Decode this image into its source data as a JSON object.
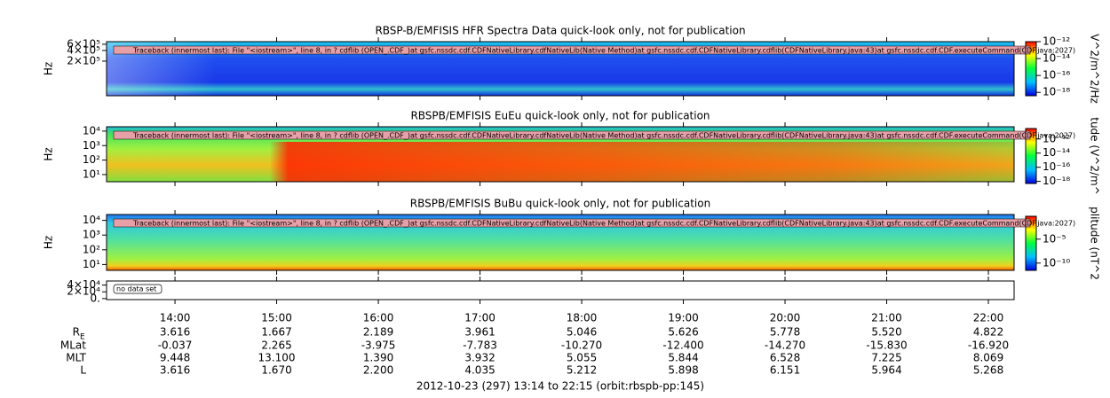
{
  "chart_data": [
    {
      "type": "heatmap",
      "title": "RBSP-B/EMFISIS  HFR Spectra Data quick-look only, not for publication",
      "ylabel": "Hz",
      "ylog": true,
      "ylim": [
        21000,
        710000
      ],
      "yticks": [
        {
          "value": 200000,
          "label": "2×10⁵"
        },
        {
          "value": 400000,
          "label": "4×10⁵"
        },
        {
          "value": 600000,
          "label": "6×10⁵"
        }
      ],
      "message": "Traceback (innermost last):  File \"<iostream>\", line 8, in ?  cdflib (OPEN_.CDF_)at gsfc.nssdc.cdf.CDFNativeLibrary.cdfNativeLib(Native Method)at gsfc.nssdc.cdf.CDFNativeLibrary.cdflib(CDFNativeLibrary.java:43)at gsfc.nssdc.cdf.CDF.executeCommand(CDF.java:2027)",
      "colorbar": {
        "label": "V^2/m^2/Hz",
        "log": true,
        "lim": [
          4e-19,
          1e-12
        ],
        "ticks": [
          {
            "value": 1e-12,
            "label": "10⁻¹²"
          },
          {
            "value": 1e-14,
            "label": "10⁻¹⁴"
          },
          {
            "value": 1e-16,
            "label": "10⁻¹⁶"
          },
          {
            "value": 1e-18,
            "label": "10⁻¹⁸"
          }
        ]
      }
    },
    {
      "type": "heatmap",
      "title": "RBSPB/EMFISIS  EuEu quick-look only, not for publication",
      "ylabel": "Hz",
      "ylog": true,
      "ylim": [
        3.2,
        20000
      ],
      "yticks": [
        {
          "value": 10,
          "label": "10¹"
        },
        {
          "value": 100,
          "label": "10²"
        },
        {
          "value": 1000,
          "label": "10³"
        },
        {
          "value": 10000,
          "label": "10⁴"
        }
      ],
      "message": "Traceback (innermost last):  File \"<iostream>\", line 8, in ?  cdflib (OPEN_.CDF_)at gsfc.nssdc.cdf.CDFNativeLibrary.cdfNativeLib(Native Method)at gsfc.nssdc.cdf.CDFNativeLibrary.cdflib(CDFNativeLibrary.java:43)at gsfc.nssdc.cdf.CDF.executeCommand(CDF.java:2027)",
      "colorbar": {
        "label": "tude (V^2/m^",
        "log": true,
        "lim": [
          5e-19,
          3e-11
        ],
        "ticks": [
          {
            "value": 1e-12,
            "label": "10⁻¹²"
          },
          {
            "value": 1e-14,
            "label": "10⁻¹⁴"
          },
          {
            "value": 1e-16,
            "label": "10⁻¹⁶"
          },
          {
            "value": 1e-18,
            "label": "10⁻¹⁸"
          }
        ]
      }
    },
    {
      "type": "heatmap",
      "title": "RBSPB/EMFISIS  BuBu quick-look only, not for publication",
      "ylabel": "Hz",
      "ylog": true,
      "ylim": [
        4,
        25000
      ],
      "yticks": [
        {
          "value": 10,
          "label": "10¹"
        },
        {
          "value": 100,
          "label": "10²"
        },
        {
          "value": 1000,
          "label": "10³"
        },
        {
          "value": 10000,
          "label": "10⁴"
        }
      ],
      "message": "Traceback (innermost last):  File \"<iostream>\", line 8, in ?  cdflib (OPEN_.CDF_)at gsfc.nssdc.cdf.CDFNativeLibrary.cdfNativeLib(Native Method)at gsfc.nssdc.cdf.CDFNativeLibrary.cdflib(CDFNativeLibrary.java:43)at gsfc.nssdc.cdf.CDF.executeCommand(CDF.java:2027)",
      "colorbar": {
        "label": "plitude (nT^2",
        "log": true,
        "lim": [
          3e-12,
          0.6
        ],
        "ticks": [
          {
            "value": 1e-05,
            "label": "10⁻⁵"
          },
          {
            "value": 1e-10,
            "label": "10⁻¹⁰"
          }
        ]
      }
    },
    {
      "type": "empty",
      "ylog": false,
      "ylim": [
        -3000,
        52000
      ],
      "yticks": [
        {
          "value": 0,
          "label": "0."
        },
        {
          "value": 20000,
          "label": "2×10⁴"
        },
        {
          "value": 40000,
          "label": "4×10⁴"
        }
      ],
      "message": "no data set"
    }
  ],
  "time_axis": {
    "xlim": [
      13.327,
      22.253
    ],
    "xticks": [
      {
        "value": 14,
        "label": "14:00"
      },
      {
        "value": 15,
        "label": "15:00"
      },
      {
        "value": 16,
        "label": "16:00"
      },
      {
        "value": 17,
        "label": "17:00"
      },
      {
        "value": 18,
        "label": "18:00"
      },
      {
        "value": 19,
        "label": "19:00"
      },
      {
        "value": 20,
        "label": "20:00"
      },
      {
        "value": 21,
        "label": "21:00"
      },
      {
        "value": 22,
        "label": "22:00"
      }
    ],
    "ephemeris": [
      {
        "label": "R",
        "sub": "E",
        "values": [
          "3.616",
          "1.667",
          "2.189",
          "3.961",
          "5.046",
          "5.626",
          "5.778",
          "5.520",
          "4.822"
        ]
      },
      {
        "label": "MLat",
        "values": [
          "-0.037",
          "2.265",
          "-3.975",
          "-7.783",
          "-10.270",
          "-12.400",
          "-14.270",
          "-15.830",
          "-16.920"
        ]
      },
      {
        "label": "MLT",
        "values": [
          "9.448",
          "13.100",
          "1.390",
          "3.932",
          "5.055",
          "5.844",
          "6.528",
          "7.225",
          "8.069"
        ]
      },
      {
        "label": "L",
        "values": [
          "3.616",
          "1.670",
          "2.200",
          "4.035",
          "5.212",
          "5.898",
          "6.151",
          "5.964",
          "5.268"
        ]
      }
    ],
    "footer": "2012-10-23 (297) 13:14 to 22:15 (orbit:rbspb-pp:145)"
  }
}
